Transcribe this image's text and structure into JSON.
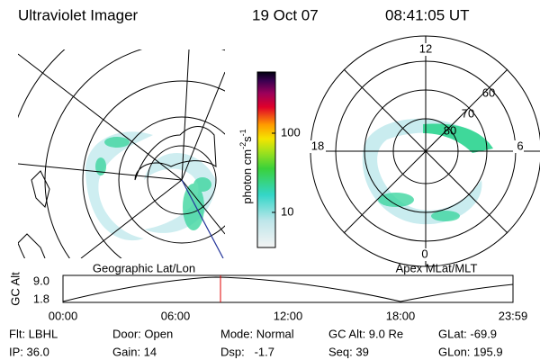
{
  "header": {
    "instrument": "Ultraviolet Imager",
    "date": "19 Oct 07",
    "time": "08:41:05 UT"
  },
  "geographic_map": {
    "label": "Geographic Lat/Lon"
  },
  "apex_map": {
    "label": "Apex MLat/MLT",
    "mlt_labels": [
      "12",
      "18",
      "6",
      "0"
    ],
    "mlat_labels": [
      "60",
      "70",
      "80"
    ]
  },
  "colorbar": {
    "unit": "photon cm",
    "exp1": "-2",
    "unit2": "s",
    "exp2": "-1",
    "ticks": [
      "100",
      "10"
    ]
  },
  "altitude_panel": {
    "y_label": "GC Alt",
    "y_ticks": [
      "9.0",
      "1.8"
    ],
    "x_ticks": [
      "00:00",
      "06:00",
      "12:00",
      "18:00",
      "23:59"
    ]
  },
  "footer": {
    "rows": [
      [
        "Flt: LBHL",
        "Door: Open",
        "Mode: Normal",
        "GC Alt: 9.0 Re",
        "GLat: -69.9"
      ],
      [
        "IP: 36.0",
        "Gain: 14",
        "Dsp:   -1.7",
        "Seq: 39",
        "GLon: 195.9"
      ]
    ]
  }
}
